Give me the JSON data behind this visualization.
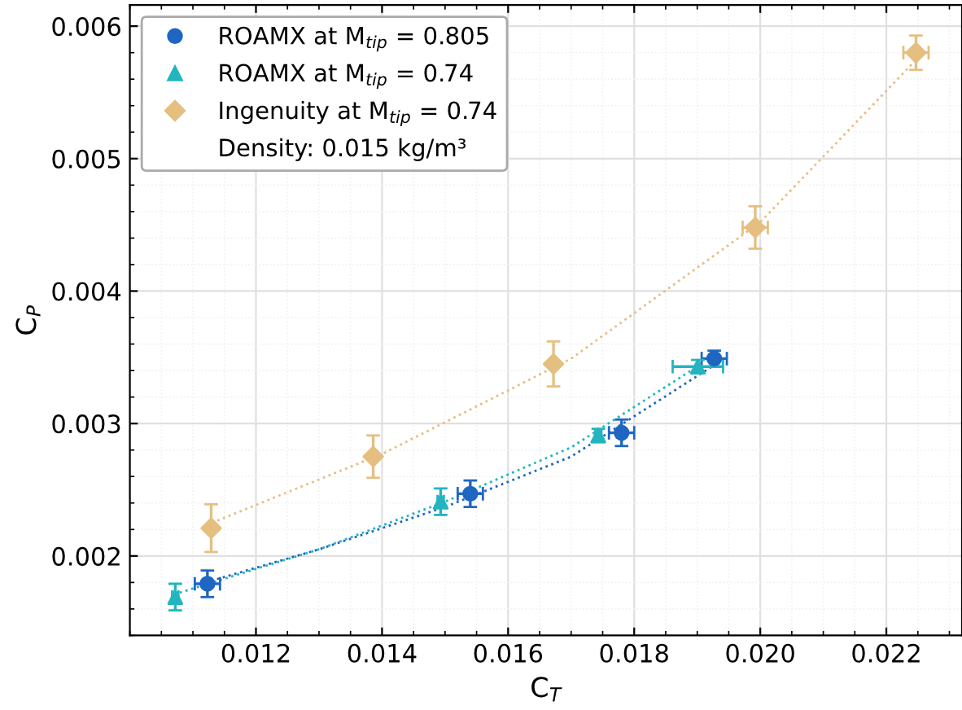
{
  "chart_data": {
    "type": "scatter",
    "xlabel": "C$_{T}$",
    "ylabel": "C$_{P}$",
    "xlim": [
      0.01,
      0.0232
    ],
    "ylim": [
      0.0014,
      0.00616
    ],
    "xticks": [
      0.012,
      0.014,
      0.016,
      0.018,
      {
        "value": 0.02,
        "label": "0.020"
      },
      0.022
    ],
    "yticks": [
      0.002,
      0.003,
      0.004,
      0.005,
      0.006
    ],
    "grid": true,
    "legend": "top left",
    "annotations": [
      "Density: 0.015 kg/m³"
    ],
    "series": [
      {
        "name": "ROAMX at M$_{tip}$ = 0.805",
        "color": "#1f66c2",
        "marker": "circle",
        "x": [
          0.01123,
          0.0154,
          0.0178,
          0.01927
        ],
        "values": [
          0.00179,
          0.00247,
          0.00293,
          0.00349
        ],
        "xerrors": [
          0.0002,
          0.0002,
          0.0002,
          0.0002
        ],
        "errors": [
          0.0001,
          0.0001,
          0.0001,
          6e-05
        ]
      },
      {
        "name": "ROAMX at M$_{tip}$ = 0.74",
        "color": "#22b5bf",
        "marker": "triangle",
        "x": [
          0.01072,
          0.01493,
          0.01743,
          0.01901
        ],
        "values": [
          0.00169,
          0.00241,
          0.00291,
          0.00343
        ],
        "xerrors": [
          5e-05,
          5e-05,
          5e-05,
          0.0004
        ],
        "errors": [
          0.0001,
          0.0001,
          5e-05,
          5e-05
        ]
      },
      {
        "name": "Ingenuity at M$_{tip}$ = 0.74",
        "color": "#e5bf80",
        "marker": "diamond",
        "x": [
          0.01129,
          0.01386,
          0.01672,
          0.01992,
          0.02247
        ],
        "values": [
          0.00221,
          0.00275,
          0.00345,
          0.00448,
          0.0058
        ],
        "xerrors": [
          5e-05,
          5e-05,
          5e-05,
          0.0002,
          0.0002
        ],
        "errors": [
          0.00018,
          0.00016,
          0.00017,
          0.00016,
          0.00013
        ]
      },
      {
        "type": "line",
        "line_style": "dotted",
        "color": "#1f66c2",
        "x": [
          0.0112,
          0.013,
          0.015,
          0.017,
          0.0193
        ],
        "values": [
          0.0018,
          0.00205,
          0.00237,
          0.00275,
          0.00345
        ]
      },
      {
        "type": "line",
        "line_style": "dotted",
        "color": "#22b5bf",
        "x": [
          0.0107,
          0.013,
          0.015,
          0.017,
          0.019
        ],
        "values": [
          0.00171,
          0.00205,
          0.00241,
          0.00282,
          0.00343
        ]
      },
      {
        "type": "line",
        "line_style": "dotted",
        "color": "#e5bf80",
        "x": [
          0.0113,
          0.014,
          0.017,
          0.02,
          0.0225
        ],
        "values": [
          0.00225,
          0.00277,
          0.00349,
          0.00452,
          0.00576
        ]
      }
    ]
  }
}
